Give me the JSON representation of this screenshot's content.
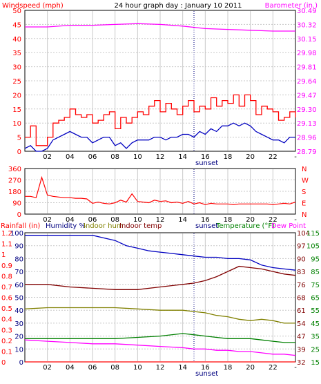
{
  "colors": {
    "wind": "#ff0000",
    "gust": "#ff0000",
    "barometer": "#ff00ff",
    "dir": "#ff0000",
    "rain": "#ff0000",
    "humidity": "#0000c0",
    "indoor_hum": "#808000",
    "indoor_temp": "#800000",
    "temperature": "#008000",
    "dewpoint": "#ff00ff",
    "avg_wind": "#0000c0",
    "grid": "#c8c8c8",
    "frame": "#000000"
  },
  "chart_data": [
    {
      "type": "line",
      "title": "24 hour graph day : January 10 2011",
      "left_label": "Windspeed (mph)",
      "right_label": "Barometer (in.)",
      "sunset_label": "sunset",
      "sunset_hour": 15.0,
      "x_ticks": [
        "02",
        "04",
        "06",
        "08",
        "10",
        "12",
        "14",
        "16",
        "18",
        "20",
        "22",
        "-"
      ],
      "left_ticks": [
        "50",
        "45",
        "40",
        "35",
        "30",
        "25",
        "20",
        "15",
        "10",
        "5",
        "0"
      ],
      "right_ticks": [
        "30.49",
        "30.32",
        "30.15",
        "29.98",
        "29.81",
        "29.64",
        "29.47",
        "29.30",
        "29.13",
        "28.96",
        "28.79"
      ],
      "left_range": [
        0,
        50
      ],
      "right_range": [
        28.79,
        30.49
      ],
      "series": [
        {
          "name": "gust",
          "x": [
            0,
            0.5,
            1,
            1.5,
            2,
            2.5,
            3,
            3.5,
            4,
            4.5,
            5,
            5.5,
            6,
            6.5,
            7,
            7.5,
            8,
            8.5,
            9,
            9.5,
            10,
            10.5,
            11,
            11.5,
            12,
            12.5,
            13,
            13.5,
            14,
            14.5,
            15,
            15.5,
            16,
            16.5,
            17,
            17.5,
            18,
            18.5,
            19,
            19.5,
            20,
            20.5,
            21,
            21.5,
            22,
            22.5,
            23,
            23.5,
            24
          ],
          "values": [
            5,
            9,
            2,
            2,
            5,
            10,
            11,
            12,
            15,
            13,
            12,
            13,
            10,
            11,
            13,
            14,
            8,
            12,
            10,
            12,
            14,
            13,
            16,
            18,
            14,
            17,
            15,
            13,
            16,
            18,
            14,
            16,
            15,
            19,
            16,
            18,
            17,
            20,
            16,
            20,
            18,
            13,
            16,
            15,
            14,
            11,
            12,
            14,
            12
          ]
        },
        {
          "name": "avg_wind",
          "x": [
            0,
            0.5,
            1,
            1.5,
            2,
            2.5,
            3,
            3.5,
            4,
            4.5,
            5,
            5.5,
            6,
            6.5,
            7,
            7.5,
            8,
            8.5,
            9,
            9.5,
            10,
            10.5,
            11,
            11.5,
            12,
            12.5,
            13,
            13.5,
            14,
            14.5,
            15,
            15.5,
            16,
            16.5,
            17,
            17.5,
            18,
            18.5,
            19,
            19.5,
            20,
            20.5,
            21,
            21.5,
            22,
            22.5,
            23,
            23.5,
            24
          ],
          "values": [
            1,
            2,
            0,
            0,
            1,
            4,
            5,
            6,
            7,
            6,
            5,
            5,
            3,
            4,
            5,
            5,
            2,
            3,
            1,
            3,
            4,
            4,
            4,
            5,
            5,
            4,
            5,
            5,
            6,
            6,
            5,
            7,
            6,
            8,
            7,
            9,
            9,
            10,
            9,
            10,
            9,
            7,
            6,
            5,
            4,
            4,
            3,
            5,
            5
          ]
        },
        {
          "name": "barometer",
          "x": [
            0,
            2,
            4,
            6,
            8,
            10,
            12,
            14,
            16,
            18,
            20,
            22,
            24
          ],
          "values": [
            30.29,
            30.29,
            30.31,
            30.31,
            30.32,
            30.33,
            30.32,
            30.3,
            30.27,
            30.26,
            30.25,
            30.24,
            30.24
          ]
        }
      ]
    },
    {
      "type": "scatter",
      "title": "",
      "right_labels": [
        "N",
        "W",
        "S",
        "E",
        "N"
      ],
      "sunset_label": "sunset",
      "sunset_hour": 15.0,
      "x_ticks": [
        "02",
        "04",
        "06",
        "08",
        "10",
        "12",
        "14",
        "16",
        "18",
        "20",
        "22",
        "-"
      ],
      "left_ticks": [
        "360",
        "270",
        "180",
        "90",
        "0"
      ],
      "left_range": [
        0,
        360
      ],
      "series": [
        {
          "name": "wind_direction",
          "x": [
            0,
            0.5,
            1,
            1.5,
            2,
            2.5,
            3,
            3.5,
            4,
            4.5,
            5,
            5.5,
            6,
            6.5,
            7,
            7.5,
            8,
            8.5,
            9,
            9.5,
            10,
            10.5,
            11,
            11.5,
            12,
            12.5,
            13,
            13.5,
            14,
            14.5,
            15,
            15.5,
            16,
            16.5,
            17,
            17.5,
            18,
            18.5,
            19,
            19.5,
            20,
            20.5,
            21,
            21.5,
            22,
            22.5,
            23,
            23.5,
            24
          ],
          "values": [
            140,
            140,
            130,
            290,
            150,
            140,
            135,
            130,
            130,
            125,
            125,
            120,
            85,
            95,
            85,
            80,
            90,
            110,
            95,
            160,
            100,
            95,
            90,
            110,
            100,
            105,
            90,
            95,
            85,
            100,
            80,
            90,
            75,
            85,
            80,
            80,
            80,
            75,
            80,
            80,
            80,
            80,
            80,
            80,
            75,
            80,
            85,
            80,
            95
          ]
        }
      ]
    },
    {
      "type": "line",
      "title": "",
      "left_header_labels": [
        "Rainfall (in)",
        "Humidity %",
        "Indoor hum",
        "Indoor temp"
      ],
      "right_header_labels": [
        "Temperature (°F)",
        "Dew Point"
      ],
      "sunset_label": "sunset",
      "sunset_hour": 15.0,
      "x_ticks": [
        "02",
        "04",
        "06",
        "08",
        "10",
        "12",
        "14",
        "16",
        "18",
        "20",
        "22",
        "-"
      ],
      "rain_ticks": [
        "1.2",
        "1.1",
        "1",
        "0.9",
        "0.8",
        "0.7",
        "0.6",
        "0.5",
        "0.4",
        "0.3",
        "0.2",
        "0.1",
        "0"
      ],
      "humidity_ticks": [
        "100",
        "90",
        "80",
        "70",
        "60",
        "50",
        "40",
        "30",
        "20",
        "10",
        "0"
      ],
      "temp_ticks_inner": [
        "104",
        "97",
        "90",
        "83",
        "76",
        "68",
        "61",
        "54",
        "47",
        "39",
        "32"
      ],
      "temp_ticks_outer": [
        "115",
        "105",
        "95",
        "85",
        "75",
        "65",
        "55",
        "45",
        "35",
        "25",
        "15"
      ],
      "humidity_range": [
        0,
        100
      ],
      "temp_range": [
        32,
        104
      ],
      "series": [
        {
          "name": "humidity",
          "x": [
            0,
            2,
            4,
            6,
            7,
            8,
            9,
            10,
            11,
            12,
            13,
            14,
            15,
            16,
            17,
            18,
            19,
            20,
            21,
            22,
            23,
            24
          ],
          "values": [
            98,
            98,
            98,
            98,
            96,
            94,
            90,
            88,
            86,
            85,
            84,
            83,
            82,
            81,
            81,
            80,
            80,
            79,
            75,
            73,
            72,
            71
          ]
        },
        {
          "name": "indoor_temp",
          "x": [
            0,
            2,
            4,
            6,
            8,
            10,
            12,
            14,
            15,
            16,
            17,
            18,
            19,
            20,
            21,
            22,
            23,
            24
          ],
          "values": [
            60,
            60,
            58,
            57,
            56,
            56,
            58,
            60,
            61,
            63,
            66,
            70,
            74,
            73,
            72,
            70,
            68,
            67
          ]
        },
        {
          "name": "indoor_hum",
          "x": [
            0,
            2,
            4,
            6,
            8,
            10,
            12,
            14,
            15,
            16,
            17,
            18,
            19,
            20,
            21,
            22,
            23,
            24
          ],
          "values": [
            41,
            42,
            42,
            42,
            42,
            41,
            40,
            40,
            39,
            38,
            36,
            35,
            33,
            32,
            33,
            32,
            30,
            30
          ]
        },
        {
          "name": "temperature",
          "x": [
            0,
            2,
            4,
            6,
            8,
            10,
            12,
            14,
            15,
            16,
            17,
            18,
            19,
            20,
            21,
            22,
            23,
            24
          ],
          "values": [
            18,
            18,
            18,
            18,
            18,
            19,
            20,
            22,
            21,
            20,
            19,
            18,
            18,
            18,
            17,
            16,
            15,
            15
          ]
        },
        {
          "name": "dewpoint",
          "x": [
            0,
            2,
            4,
            6,
            8,
            10,
            12,
            14,
            15,
            16,
            17,
            18,
            19,
            20,
            21,
            22,
            23,
            24
          ],
          "values": [
            17,
            16,
            15,
            14,
            14,
            13,
            12,
            11,
            10,
            10,
            9,
            9,
            8,
            8,
            7,
            6,
            6,
            5
          ]
        },
        {
          "name": "rainfall",
          "x": [
            0,
            24
          ],
          "values": [
            0,
            0
          ]
        }
      ]
    }
  ]
}
